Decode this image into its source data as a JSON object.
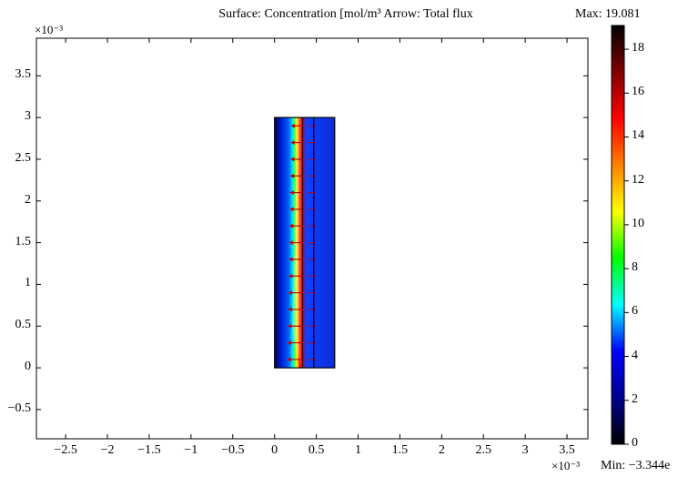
{
  "chart_data": {
    "type": "heatmap",
    "title": "Surface: Concentration [mol/m³ Arrow: Total flux",
    "max_label": "Max: 19.081",
    "min_label": "Min: −3.344e",
    "x_exponent_label": "×10⁻³",
    "y_exponent_label": "×10⁻³",
    "xlim": [
      -2.85,
      3.75
    ],
    "ylim": [
      -0.85,
      3.95
    ],
    "x_ticks": [
      -2.5,
      -2,
      -1.5,
      -1,
      -0.5,
      0,
      0.5,
      1,
      1.5,
      2,
      2.5,
      3,
      3.5
    ],
    "x_tick_labels": [
      "−2.5",
      "−2",
      "−1.5",
      "−1",
      "−0.5",
      "0",
      "0.5",
      "1",
      "1.5",
      "2",
      "2.5",
      "3",
      "3.5"
    ],
    "y_ticks": [
      -0.5,
      0,
      0.5,
      1,
      1.5,
      2,
      2.5,
      3,
      3.5
    ],
    "y_tick_labels": [
      "−0.5",
      "0",
      "0.5",
      "1",
      "1.5",
      "2",
      "2.5",
      "3",
      "3.5"
    ],
    "domain": {
      "x": [
        0,
        0.72
      ],
      "y": [
        0,
        3.0
      ],
      "divider_x": 0.47
    },
    "peak_line": {
      "x_bottom": 0.3,
      "x_top": 0.3,
      "value": 19.081
    },
    "colorbar": {
      "range": [
        0,
        19.081
      ],
      "ticks": [
        0,
        2,
        4,
        6,
        8,
        10,
        12,
        14,
        16,
        18
      ],
      "tick_labels": [
        "0",
        "2",
        "4",
        "6",
        "8",
        "10",
        "12",
        "14",
        "16",
        "18"
      ]
    },
    "arrows_y": [
      0.1,
      0.3,
      0.5,
      0.7,
      0.9,
      1.1,
      1.3,
      1.5,
      1.7,
      1.9,
      2.1,
      2.3,
      2.5,
      2.7,
      2.9
    ],
    "colors": {
      "ramp": [
        "#000000",
        "#00008f",
        "#0000ff",
        "#00ffff",
        "#00ff00",
        "#ffff00",
        "#ff8000",
        "#ff0000",
        "#800000",
        "#000000"
      ],
      "arrow": "#c00000",
      "domain_fill": "#0a2cd8"
    }
  }
}
